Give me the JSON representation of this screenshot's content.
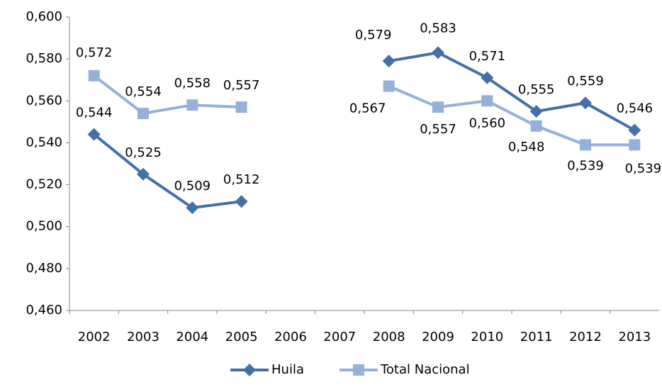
{
  "chart_data": {
    "type": "line",
    "categories": [
      "2002",
      "2003",
      "2004",
      "2005",
      "2006",
      "2007",
      "2008",
      "2009",
      "2010",
      "2011",
      "2012",
      "2013"
    ],
    "series": [
      {
        "name": "Huila",
        "color": "#4470a8",
        "marker": "diamond",
        "values": [
          0.544,
          0.525,
          0.509,
          0.512,
          null,
          null,
          0.579,
          0.583,
          0.571,
          0.555,
          0.559,
          0.546
        ],
        "value_labels": [
          "0,544",
          "0,525",
          "0,509",
          "0,512",
          null,
          null,
          "0,579",
          "0,583",
          "0,571",
          "0,555",
          "0,559",
          "0,546"
        ]
      },
      {
        "name": "Total Nacional",
        "color": "#95b1da",
        "marker": "square",
        "values": [
          0.572,
          0.554,
          0.558,
          0.557,
          null,
          null,
          0.567,
          0.557,
          0.56,
          0.548,
          0.539,
          0.539
        ],
        "value_labels": [
          "0,572",
          "0,554",
          "0,558",
          "0,557",
          null,
          null,
          "0,567",
          "0,557",
          "0,560",
          "0,548",
          "0,539",
          "0,539"
        ]
      }
    ],
    "ylim": [
      0.46,
      0.6
    ],
    "yticks": [
      {
        "value": 0.46,
        "label": "0,460"
      },
      {
        "value": 0.48,
        "label": "0,480"
      },
      {
        "value": 0.5,
        "label": "0,500"
      },
      {
        "value": 0.52,
        "label": "0,520"
      },
      {
        "value": 0.54,
        "label": "0,540"
      },
      {
        "value": 0.56,
        "label": "0,560"
      },
      {
        "value": 0.58,
        "label": "0,580"
      },
      {
        "value": 0.6,
        "label": "0,600"
      }
    ],
    "grid": false,
    "legend": "bottom"
  }
}
